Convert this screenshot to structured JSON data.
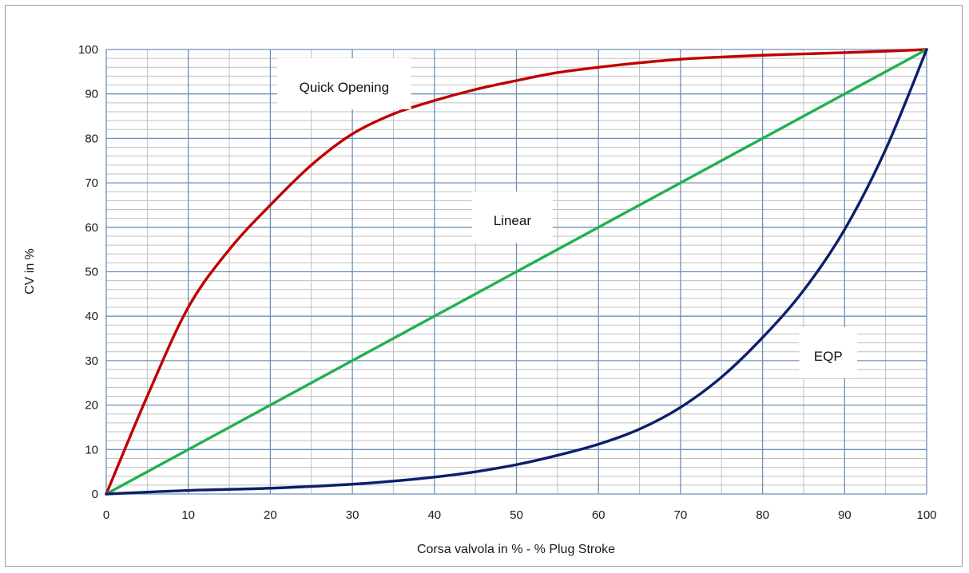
{
  "chart_data": {
    "type": "line",
    "title": "",
    "xlabel": "Corsa valvola in % - % Plug Stroke",
    "ylabel": "CV in %",
    "xlim": [
      0,
      100
    ],
    "ylim": [
      0,
      100
    ],
    "xticks": [
      0,
      10,
      20,
      30,
      40,
      50,
      60,
      70,
      80,
      90,
      100
    ],
    "yticks": [
      0,
      10,
      20,
      30,
      40,
      50,
      60,
      70,
      80,
      90,
      100
    ],
    "grid": true,
    "legend": "none",
    "colors": {
      "quick_opening": "#c00000",
      "linear": "#22b04e",
      "eqp": "#0d1f6b",
      "major_grid": "#6f8fb8",
      "minor_grid": "#bfbfbf"
    },
    "series": [
      {
        "name": "Quick Opening",
        "color_key": "quick_opening",
        "x": [
          0,
          5,
          10,
          15,
          20,
          25,
          30,
          35,
          40,
          45,
          50,
          55,
          60,
          65,
          70,
          75,
          80,
          85,
          90,
          95,
          100
        ],
        "y": [
          0,
          22,
          42,
          55,
          65,
          74,
          81,
          85.5,
          88.5,
          91,
          93,
          94.8,
          96,
          97,
          97.8,
          98.3,
          98.7,
          99,
          99.3,
          99.6,
          100
        ]
      },
      {
        "name": "Linear",
        "color_key": "linear",
        "x": [
          0,
          100
        ],
        "y": [
          0,
          100
        ]
      },
      {
        "name": "EQP",
        "color_key": "eqp",
        "x": [
          0,
          10,
          20,
          30,
          35,
          40,
          45,
          50,
          55,
          60,
          65,
          70,
          75,
          80,
          85,
          90,
          95,
          100
        ],
        "y": [
          0,
          0.8,
          1.3,
          2.2,
          2.9,
          3.8,
          5,
          6.6,
          8.7,
          11.2,
          14.6,
          19.5,
          26.3,
          35.2,
          45.8,
          59.5,
          77.5,
          100
        ]
      }
    ],
    "annotations": [
      {
        "text": "Quick Opening",
        "x": 29,
        "y": 90.5
      },
      {
        "text": "Linear",
        "x": 49.5,
        "y": 60.5
      },
      {
        "text": "EQP",
        "x": 88,
        "y": 30
      }
    ]
  }
}
